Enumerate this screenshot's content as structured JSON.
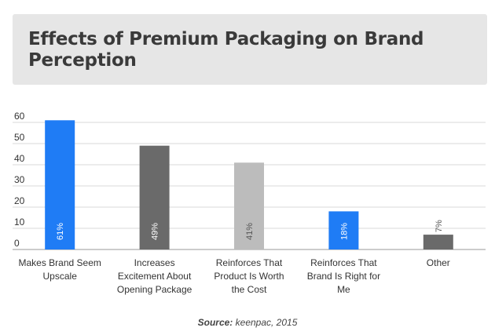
{
  "chart_data": {
    "type": "bar",
    "title": "Effects of Premium Packaging on Brand Perception",
    "categories": [
      [
        "Makes Brand Seem",
        "Upscale"
      ],
      [
        "Increases",
        "Excitement About",
        "Opening Package"
      ],
      [
        "Reinforces That",
        "Product Is Worth",
        "the Cost"
      ],
      [
        "Reinforces That",
        "Brand Is Right for",
        "Me"
      ],
      [
        "Other"
      ]
    ],
    "values": [
      61,
      49,
      41,
      18,
      7
    ],
    "data_labels": [
      "61%",
      "49%",
      "41%",
      "18%",
      "7%"
    ],
    "bar_colors": [
      "#1f7cf5",
      "#6a6a6a",
      "#bcbcbc",
      "#1f7cf5",
      "#6a6a6a"
    ],
    "ylim": [
      0,
      60
    ],
    "yticks": [
      0,
      10,
      20,
      30,
      40,
      50,
      60
    ],
    "grid": true,
    "legend": "none"
  },
  "source": {
    "label": "Source:",
    "text": "keenpac, 2015"
  }
}
